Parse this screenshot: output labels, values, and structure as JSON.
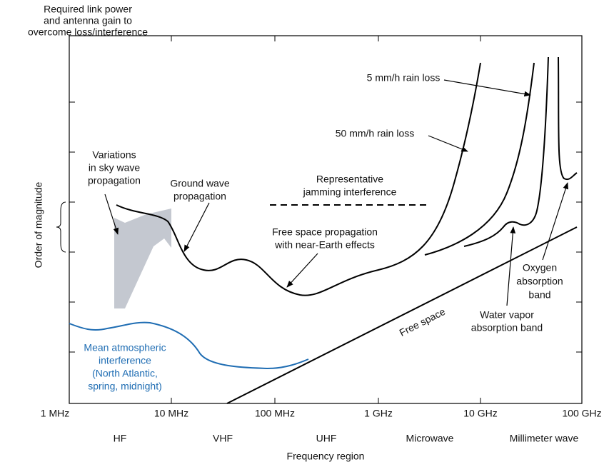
{
  "header": {
    "lines": [
      "Required link power",
      "and antenna gain to",
      "overcome loss/interference"
    ]
  },
  "y_axis": {
    "label": "Order of magnitude"
  },
  "x_axis": {
    "ticks": [
      "1 MHz",
      "10 MHz",
      "100 MHz",
      "1 GHz",
      "10 GHz",
      "100 GHz"
    ],
    "regions": [
      "HF",
      "VHF",
      "UHF",
      "Microwave",
      "Millimeter wave"
    ],
    "label": "Frequency region"
  },
  "annotations": {
    "rain5": [
      "5 mm/h rain loss"
    ],
    "rain50": [
      "50 mm/h rain loss"
    ],
    "sky": [
      "Variations",
      "in sky wave",
      "propagation"
    ],
    "ground": [
      "Ground wave",
      "propagation"
    ],
    "jamming": [
      "Representative",
      "jamming interference"
    ],
    "freespace_near": [
      "Free space propagation",
      "with near-Earth effects"
    ],
    "oxygen": [
      "Oxygen",
      "absorption",
      "band"
    ],
    "water": [
      "Water vapor",
      "absorption band"
    ],
    "freespace": [
      "Free space"
    ],
    "atmos": [
      "Mean atmospheric",
      "interference",
      "(North Atlantic,",
      "spring, midnight)"
    ]
  }
}
